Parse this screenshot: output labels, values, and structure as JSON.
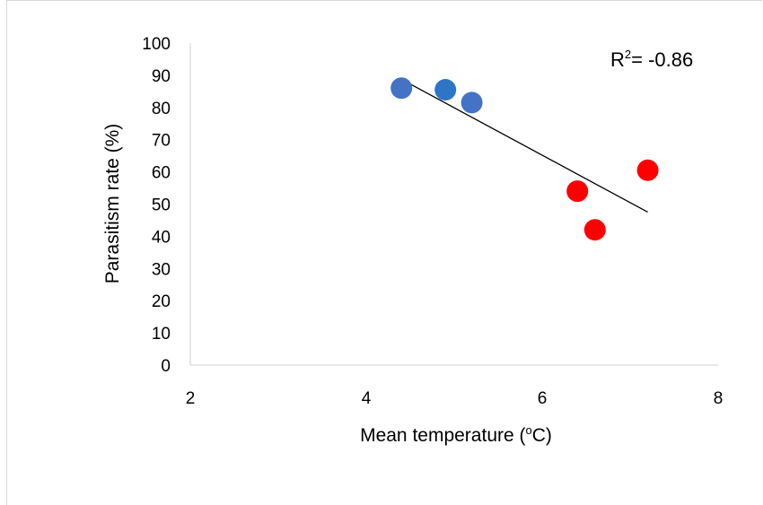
{
  "chart_data": {
    "type": "scatter",
    "xlim": [
      2,
      8
    ],
    "ylim": [
      0,
      100
    ],
    "x_ticks": [
      "2",
      "4",
      "6",
      "8"
    ],
    "y_ticks": [
      "0",
      "10",
      "20",
      "30",
      "40",
      "50",
      "60",
      "70",
      "80",
      "90",
      "100"
    ],
    "xlabel": {
      "prefix": "Mean temperature (",
      "sup": "o",
      "suffix": "C)"
    },
    "ylabel": "Parasitism rate (%)",
    "grid": false,
    "points": [
      {
        "x": 4.4,
        "y": 86,
        "color": "#4472c4"
      },
      {
        "x": 4.9,
        "y": 85.5,
        "color": "#2e75c6"
      },
      {
        "x": 5.2,
        "y": 81.5,
        "color": "#4472c4"
      },
      {
        "x": 6.4,
        "y": 54,
        "color": "#ff0000"
      },
      {
        "x": 6.6,
        "y": 42,
        "color": "#ff0000"
      },
      {
        "x": 7.2,
        "y": 60.5,
        "color": "#ff0000"
      }
    ],
    "trendline": {
      "x": [
        4.45,
        7.2
      ],
      "y": [
        88,
        47.5
      ],
      "color": "#000000"
    },
    "annotation": {
      "prefix": "R",
      "sup": "2",
      "suffix": "= -0.86"
    }
  }
}
